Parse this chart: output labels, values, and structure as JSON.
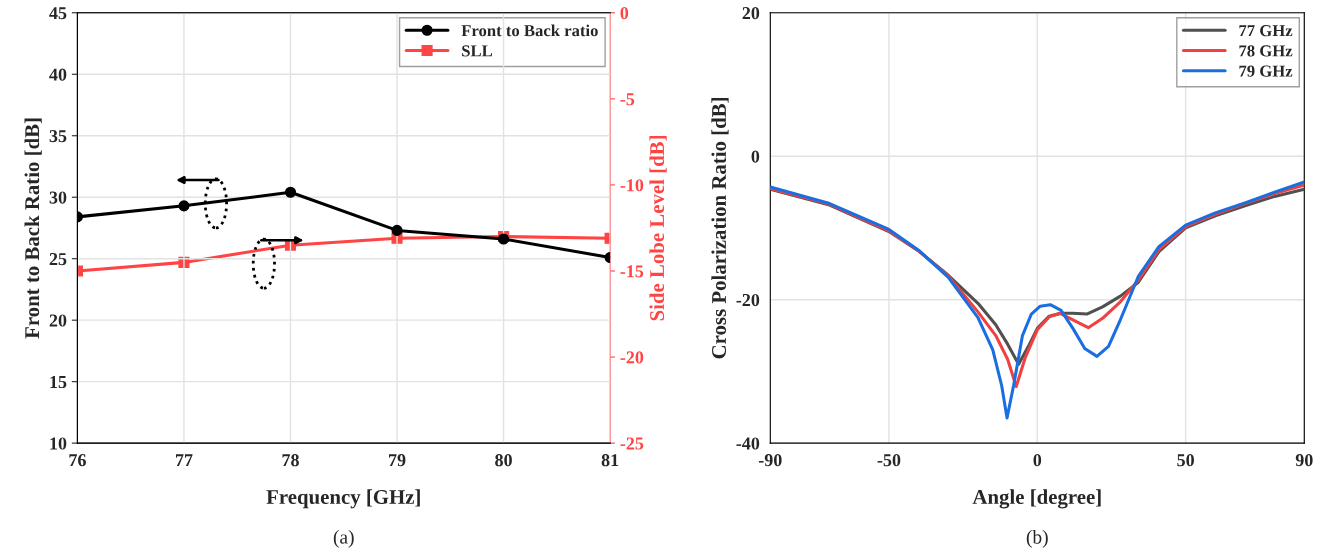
{
  "chart_data": [
    {
      "type": "line",
      "xlabel": "Frequency [GHz]",
      "ylabel": "Front to Back Ratio [dB]",
      "y2label": "Side Lobe Level [dB]",
      "x": [
        76,
        77,
        78,
        79,
        80,
        81
      ],
      "series": [
        {
          "name": "Front to Back ratio",
          "color": "#000000",
          "marker": "circle",
          "values": [
            28.4,
            29.3,
            30.4,
            27.3,
            26.6,
            25.1
          ]
        },
        {
          "name": "SLL",
          "color": "#ff4444",
          "marker": "square",
          "axis": "y2",
          "values": [
            -15.0,
            -14.5,
            -13.5,
            -13.1,
            -13.0,
            -13.1
          ]
        }
      ],
      "xlim": [
        76,
        81
      ],
      "xticks": [
        76,
        77,
        78,
        79,
        80,
        81
      ],
      "ylim": [
        10,
        45
      ],
      "yticks": [
        10,
        15,
        20,
        25,
        30,
        35,
        40,
        45
      ],
      "y2lim": [
        -25,
        0
      ],
      "y2ticks": [
        -25,
        -20,
        -15,
        -10,
        -5,
        0
      ],
      "grid": true,
      "legend": "top right",
      "line_style": "solid",
      "annotations": [
        "(a)"
      ]
    },
    {
      "type": "line",
      "xlabel": "Angle [degree]",
      "ylabel": "Cross Polarization Ratio [dB]",
      "series": [
        {
          "name": "77 GHz",
          "color": "#505050",
          "x": [
            -90,
            -70,
            -50,
            -40,
            -30,
            -20,
            -14,
            -10,
            -6.3,
            -3,
            0,
            4,
            8,
            12,
            16.7,
            22,
            28,
            34,
            41,
            50,
            60,
            70,
            80,
            90
          ],
          "values": [
            -4.6,
            -6.8,
            -10.5,
            -13.2,
            -16.6,
            -20.5,
            -23.5,
            -26.2,
            -29.0,
            -26.5,
            -24.0,
            -22.3,
            -21.9,
            -21.9,
            -22.0,
            -21.0,
            -19.5,
            -17.6,
            -13.3,
            -10.0,
            -8.3,
            -6.9,
            -5.6,
            -4.6
          ]
        },
        {
          "name": "78 GHz",
          "color": "#f04040",
          "x": [
            -90,
            -70,
            -50,
            -40,
            -30,
            -20,
            -14,
            -10,
            -7.1,
            -4,
            0,
            4,
            7.7,
            12,
            17.2,
            22,
            28,
            34,
            41,
            50,
            60,
            70,
            80,
            90
          ],
          "values": [
            -4.5,
            -6.7,
            -10.4,
            -13.2,
            -16.7,
            -21.7,
            -25.0,
            -28.3,
            -32.1,
            -28.0,
            -24.2,
            -22.4,
            -21.9,
            -22.8,
            -23.9,
            -22.6,
            -20.3,
            -17.3,
            -13.0,
            -9.8,
            -8.1,
            -6.6,
            -5.2,
            -4.0
          ]
        },
        {
          "name": "79 GHz",
          "color": "#1a6ee0",
          "x": [
            -90,
            -70,
            -50,
            -40,
            -30,
            -20,
            -15,
            -12,
            -10.2,
            -8,
            -5,
            -2,
            1,
            4.4,
            8,
            12,
            16,
            20.1,
            24,
            28,
            34,
            41,
            50,
            60,
            70,
            80,
            90
          ],
          "values": [
            -4.3,
            -6.6,
            -10.2,
            -13.1,
            -16.9,
            -22.5,
            -27.0,
            -32.0,
            -36.5,
            -32.0,
            -25.0,
            -22.0,
            -20.9,
            -20.7,
            -21.5,
            -24.0,
            -26.8,
            -27.9,
            -26.5,
            -22.8,
            -16.8,
            -12.6,
            -9.6,
            -7.9,
            -6.5,
            -5.0,
            -3.6
          ]
        }
      ],
      "xlim": [
        -90,
        90
      ],
      "xticks": [
        -90,
        -50,
        0,
        50,
        90
      ],
      "ylim": [
        -40,
        20
      ],
      "yticks": [
        -40,
        -20,
        0,
        20
      ],
      "grid": true,
      "legend": "top right",
      "marker": "none",
      "line_style": "solid",
      "annotations": [
        "(b)"
      ]
    }
  ]
}
